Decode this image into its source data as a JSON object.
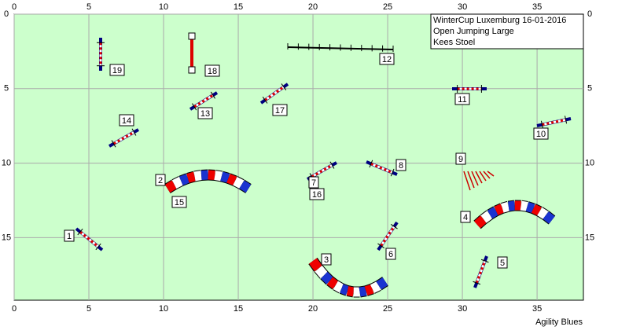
{
  "course": {
    "xlim": [
      0,
      38.1
    ],
    "ylim": [
      0,
      19.2
    ],
    "xticks": [
      0,
      5,
      10,
      15,
      20,
      25,
      30,
      35
    ],
    "yticks": [
      0,
      5,
      10,
      15
    ],
    "info": [
      "WinterCup Luxemburg 16-01-2016",
      "Open Jumping Large",
      "Kees Stoel"
    ],
    "labels": [
      "1",
      "2",
      "3",
      "4",
      "5",
      "6",
      "7",
      "8",
      "9",
      "10",
      "11",
      "12",
      "13",
      "14",
      "15",
      "16",
      "17",
      "18",
      "19"
    ],
    "footer": "Agility Blues"
  }
}
